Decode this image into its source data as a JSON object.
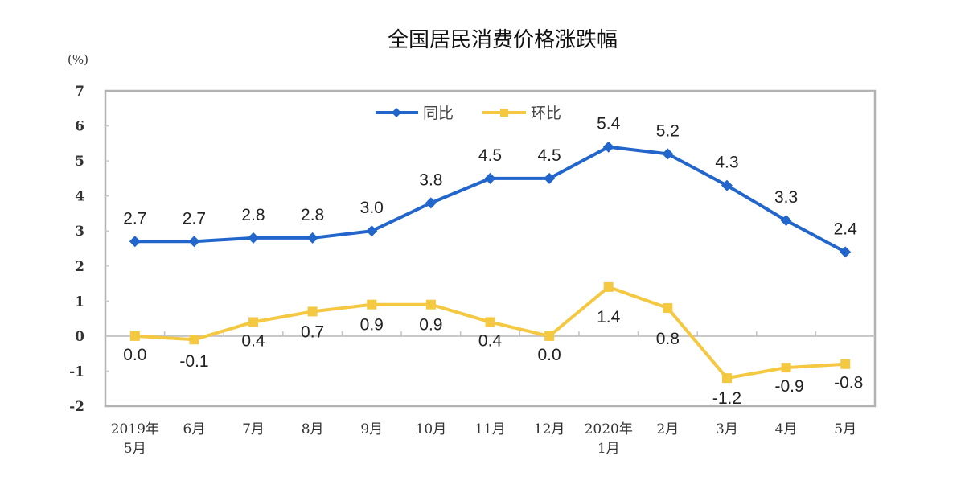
{
  "chart_data": {
    "type": "line",
    "title": "全国居民消费价格涨跌幅",
    "unit_label": "(%)",
    "xlabel": "",
    "ylabel": "(%)",
    "ylim": [
      -2,
      7
    ],
    "yticks": [
      7,
      6,
      5,
      4,
      3,
      2,
      1,
      0,
      -1,
      -2
    ],
    "grid": false,
    "legend_position": "top-center-inside",
    "categories": [
      [
        "2019年",
        "5月"
      ],
      [
        "6月"
      ],
      [
        "7月"
      ],
      [
        "8月"
      ],
      [
        "9月"
      ],
      [
        "10月"
      ],
      [
        "11月"
      ],
      [
        "12月"
      ],
      [
        "2020年",
        "1月"
      ],
      [
        "2月"
      ],
      [
        "3月"
      ],
      [
        "4月"
      ],
      [
        "5月"
      ]
    ],
    "series": [
      {
        "name": "同比",
        "color": "#2266CC",
        "marker": "diamond",
        "values": [
          2.7,
          2.7,
          2.8,
          2.8,
          3.0,
          3.8,
          4.5,
          4.5,
          5.4,
          5.2,
          4.3,
          3.3,
          2.4
        ],
        "labels": [
          "2.7",
          "2.7",
          "2.8",
          "2.8",
          "3.0",
          "3.8",
          "4.5",
          "4.5",
          "5.4",
          "5.2",
          "4.3",
          "3.3",
          "2.4"
        ]
      },
      {
        "name": "环比",
        "color": "#F5C842",
        "marker": "square",
        "values": [
          0.0,
          -0.1,
          0.4,
          0.7,
          0.9,
          0.9,
          0.4,
          0.0,
          1.4,
          0.8,
          -1.2,
          -0.9,
          -0.8
        ],
        "labels": [
          "0.0",
          "-0.1",
          "0.4",
          "0.7",
          "0.9",
          "0.9",
          "0.4",
          "0.0",
          "1.4",
          "0.8",
          "-1.2",
          "-0.9",
          "-0.8"
        ]
      }
    ]
  }
}
